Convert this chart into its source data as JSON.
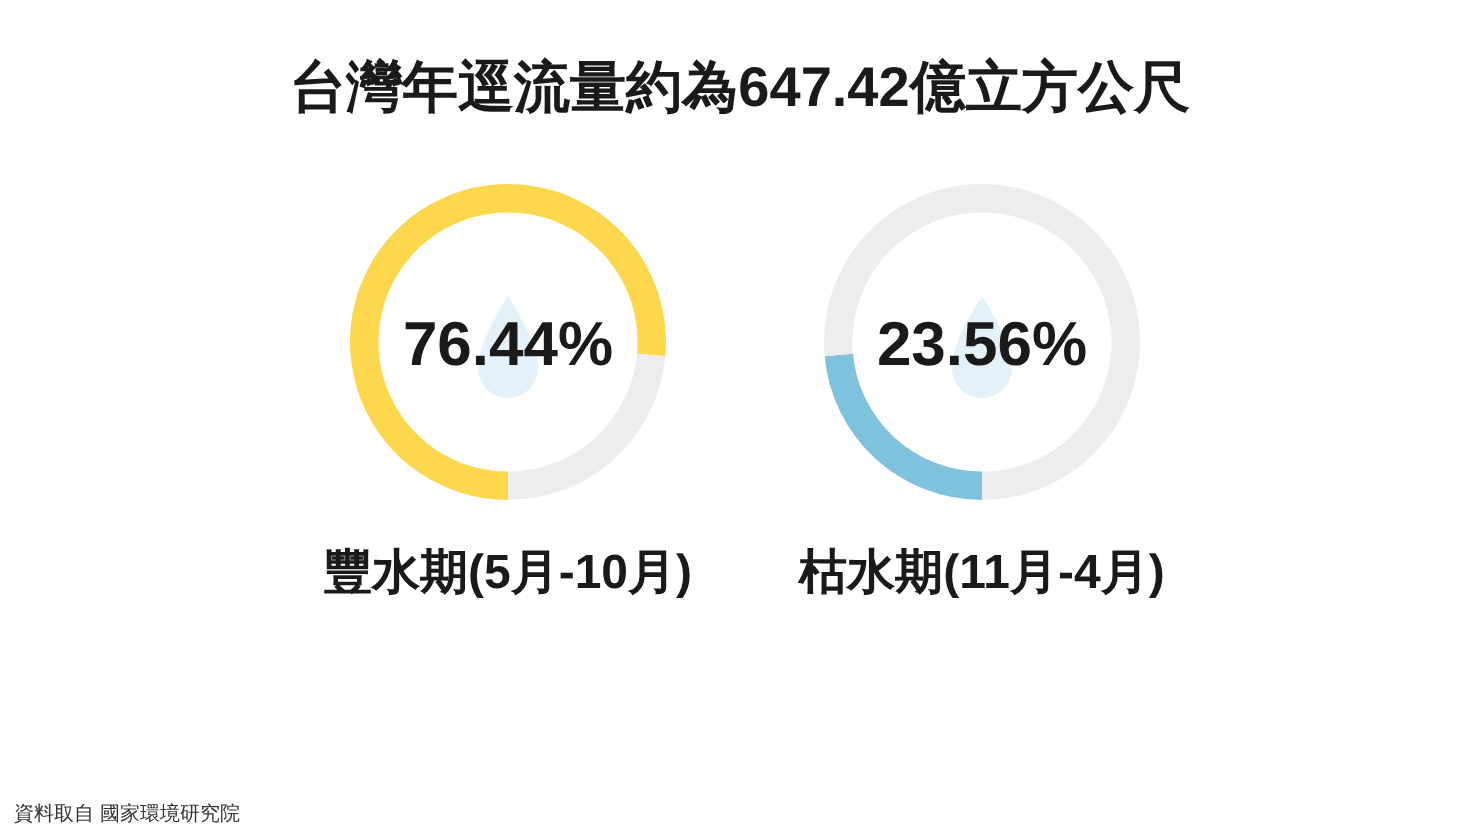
{
  "chart_data": [
    {
      "type": "donut",
      "title": "台灣年逕流量約為647.42億立方公尺",
      "categories": [
        "豐水期(5月-10月)",
        null
      ],
      "values": [
        76.44,
        23.56
      ],
      "colors": [
        "#fdd74d",
        "#ededed"
      ],
      "value_labels": [
        "76.44%",
        null
      ],
      "annotations": [
        "資料取自 國家環境研究院"
      ]
    },
    {
      "type": "donut",
      "categories": [
        "枯水期(11月-4月)",
        null
      ],
      "values": [
        23.56,
        76.44
      ],
      "colors": [
        "#80c2de",
        "#ededed"
      ],
      "value_labels": [
        "23.56%",
        null
      ]
    }
  ]
}
